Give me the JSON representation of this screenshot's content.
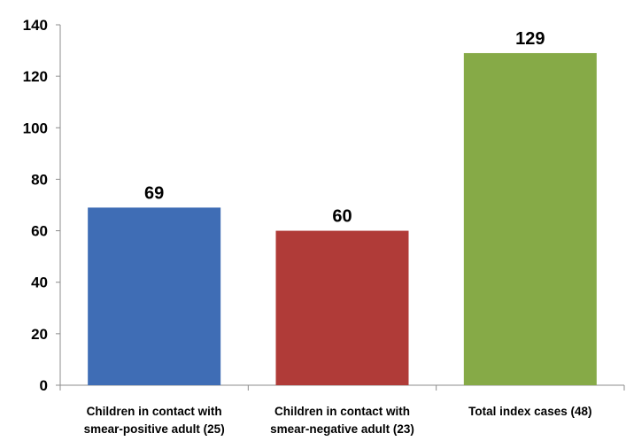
{
  "chart_data": {
    "type": "bar",
    "title": "",
    "xlabel": "",
    "ylabel": "",
    "ylim": [
      0,
      140
    ],
    "yticks": [
      0,
      20,
      40,
      60,
      80,
      100,
      120,
      140
    ],
    "grid": false,
    "legend": "none",
    "categories": [
      [
        "Children in contact with",
        "smear-positive adult (25)"
      ],
      [
        "Children in contact with",
        "smear-negative adult (23)"
      ],
      [
        "Total index cases (48)"
      ]
    ],
    "values": [
      69,
      60,
      129
    ],
    "colors": [
      "#3f6db5",
      "#b03b38",
      "#86aa47"
    ]
  }
}
